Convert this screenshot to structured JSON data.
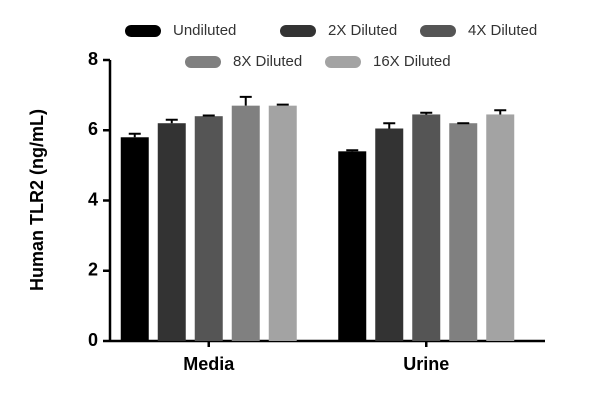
{
  "chart_data": {
    "type": "bar",
    "y_label": "Human TLR2 (ng/mL)",
    "categories": [
      "Media",
      "Urine"
    ],
    "series": [
      {
        "name": "Undiluted",
        "color": "#000000",
        "values": [
          5.8,
          5.4
        ],
        "errors": [
          0.1,
          0.03
        ]
      },
      {
        "name": "2X Diluted",
        "color": "#333333",
        "values": [
          6.2,
          6.05
        ],
        "errors": [
          0.1,
          0.15
        ]
      },
      {
        "name": "4X Diluted",
        "color": "#555555",
        "values": [
          6.4,
          6.45
        ],
        "errors": [
          0.02,
          0.05
        ]
      },
      {
        "name": "8X Diluted",
        "color": "#808080",
        "values": [
          6.7,
          6.2
        ],
        "errors": [
          0.25,
          0
        ]
      },
      {
        "name": "16X Diluted",
        "color": "#a3a3a3",
        "values": [
          6.7,
          6.45
        ],
        "errors": [
          0.03,
          0.12
        ]
      }
    ],
    "ylim": [
      0,
      8
    ],
    "yticks": [
      0,
      2,
      4,
      6,
      8
    ]
  }
}
